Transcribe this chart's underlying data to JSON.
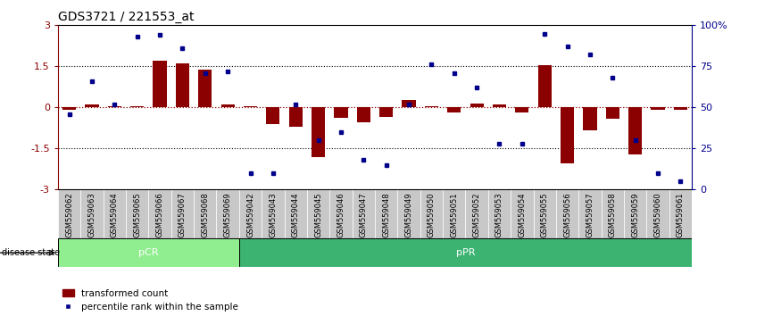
{
  "title": "GDS3721 / 221553_at",
  "samples": [
    "GSM559062",
    "GSM559063",
    "GSM559064",
    "GSM559065",
    "GSM559066",
    "GSM559067",
    "GSM559068",
    "GSM559069",
    "GSM559042",
    "GSM559043",
    "GSM559044",
    "GSM559045",
    "GSM559046",
    "GSM559047",
    "GSM559048",
    "GSM559049",
    "GSM559050",
    "GSM559051",
    "GSM559052",
    "GSM559053",
    "GSM559054",
    "GSM559055",
    "GSM559056",
    "GSM559057",
    "GSM559058",
    "GSM559059",
    "GSM559060",
    "GSM559061"
  ],
  "transformed_count": [
    -0.07,
    0.12,
    0.04,
    0.06,
    1.72,
    1.62,
    1.38,
    0.12,
    0.03,
    -0.62,
    -0.7,
    -1.82,
    -0.38,
    -0.55,
    -0.35,
    0.28,
    0.06,
    -0.2,
    0.15,
    0.12,
    -0.2,
    1.55,
    -2.05,
    -0.85,
    -0.42,
    -1.72,
    -0.1,
    -0.1
  ],
  "percentile_rank": [
    46,
    66,
    52,
    93,
    94,
    86,
    71,
    72,
    10,
    10,
    52,
    30,
    35,
    18,
    15,
    52,
    76,
    71,
    62,
    28,
    28,
    95,
    87,
    82,
    68,
    30,
    10,
    5
  ],
  "pCR_count": 8,
  "bar_color": "#8B0000",
  "dot_color": "#00008B",
  "left_yticks": [
    -3,
    -1.5,
    0,
    1.5,
    3
  ],
  "right_yticks": [
    0,
    25,
    50,
    75,
    100
  ],
  "dotted_lines_black": [
    1.5,
    -1.5
  ],
  "pCR_label": "pCR",
  "pPR_label": "pPR",
  "disease_state_label": "disease state",
  "legend_bar_label": "transformed count",
  "legend_dot_label": "percentile rank within the sample",
  "pCR_color": "#90EE90",
  "pPR_color": "#3CB371",
  "title_fontsize": 10,
  "label_fontsize": 6,
  "axis_fontsize": 8
}
